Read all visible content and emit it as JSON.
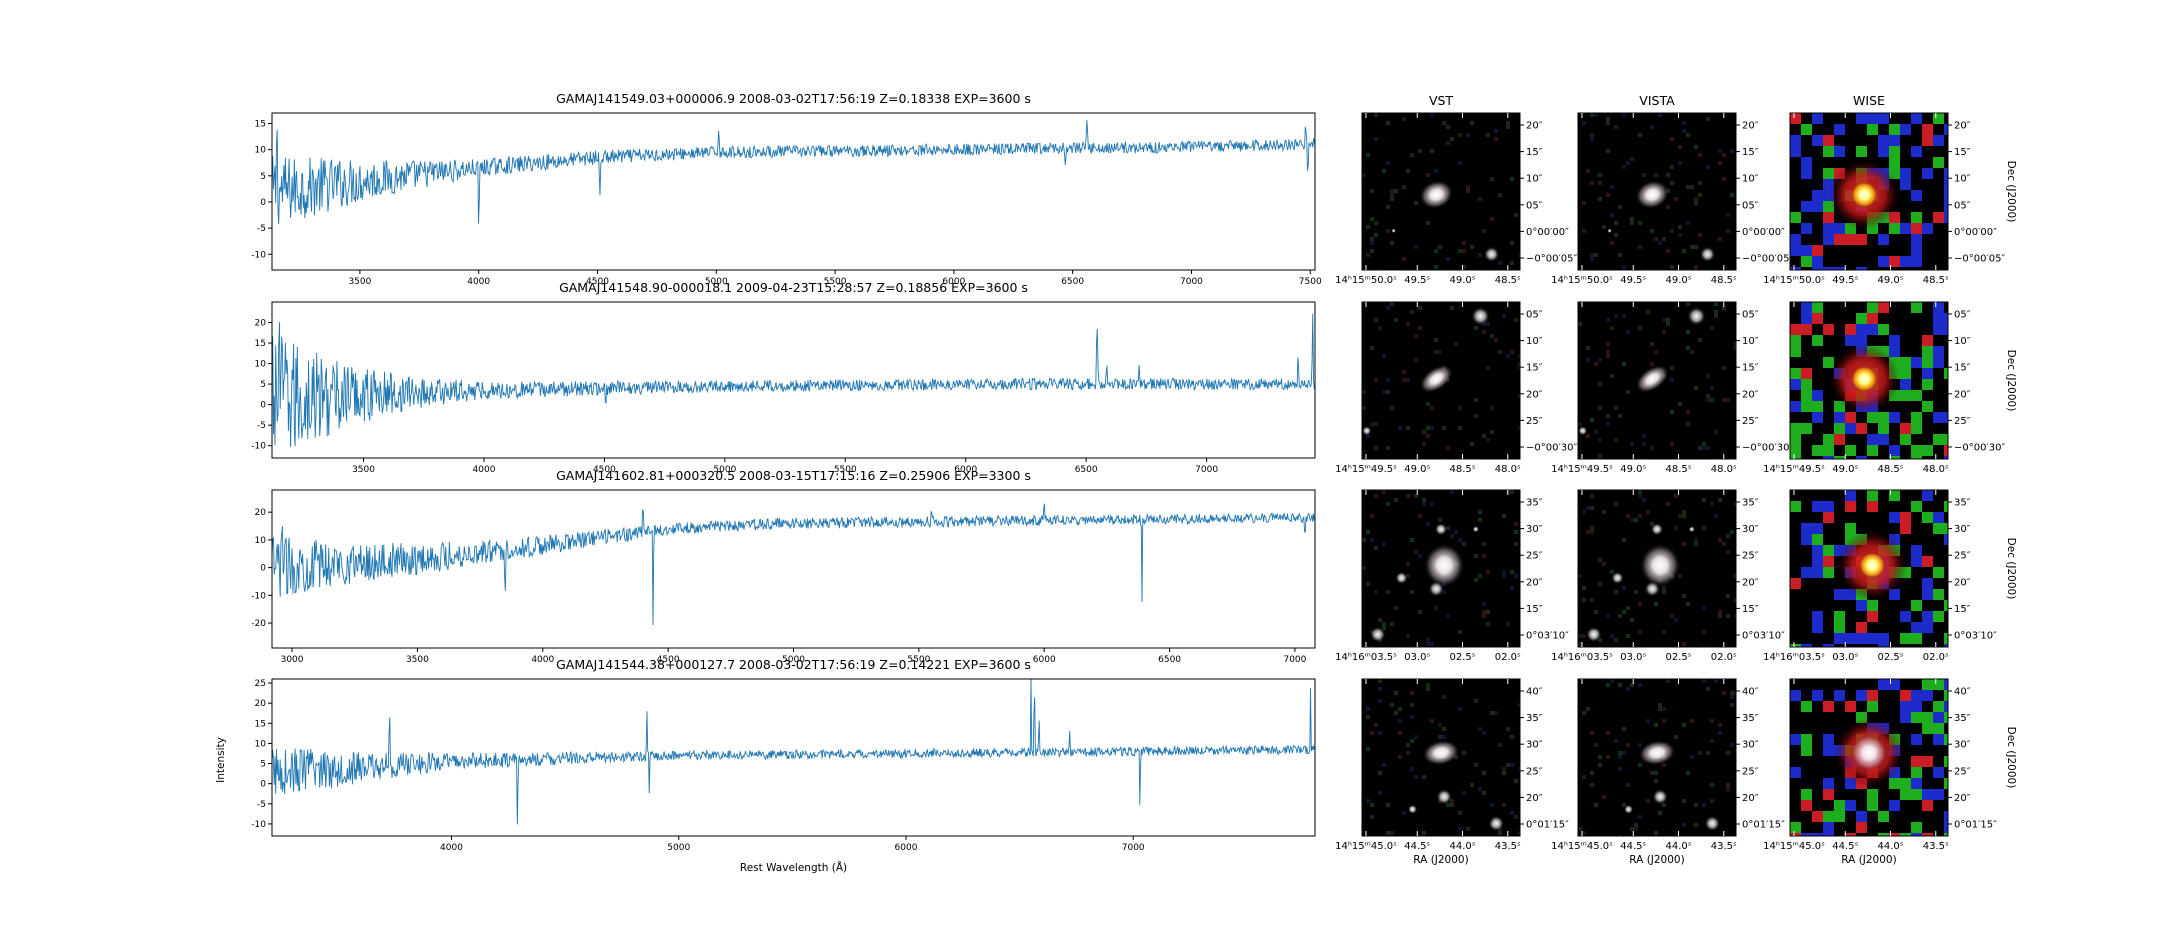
{
  "figure": {
    "ylabel": "Intensity",
    "xlabel": "Rest Wavelength (Å)",
    "image_column_titles": [
      "VST",
      "VISTA",
      "WISE"
    ],
    "image_xlabel": "RA (J2000)",
    "image_ylabel": "Dec (J2000)"
  },
  "chart_data": [
    {
      "type": "line",
      "title": "GAMAJ141549.03+000006.9 2008-03-02T17:56:19 Z=0.18338 EXP=3600 s",
      "xlim": [
        3130,
        7520
      ],
      "ylim": [
        -13,
        17
      ],
      "xticks": [
        3500,
        4000,
        4500,
        5000,
        5500,
        6000,
        6500,
        7000,
        7500
      ],
      "yticks": [
        -10,
        -5,
        0,
        5,
        10,
        15
      ],
      "continuum": [
        [
          3130,
          2
        ],
        [
          3500,
          4
        ],
        [
          4000,
          6.5
        ],
        [
          4500,
          8.5
        ],
        [
          5000,
          9.5
        ],
        [
          6000,
          10
        ],
        [
          7000,
          10.5
        ],
        [
          7500,
          11
        ]
      ],
      "noise": [
        [
          3130,
          5
        ],
        [
          3600,
          2.5
        ],
        [
          4000,
          1.2
        ],
        [
          5000,
          0.8
        ],
        [
          7500,
          0.8
        ]
      ],
      "features": [
        [
          3150,
          15,
          4
        ],
        [
          4000,
          -14,
          4
        ],
        [
          4510,
          -10,
          4
        ],
        [
          5010,
          5,
          5
        ],
        [
          6470,
          -3,
          4
        ],
        [
          6560,
          5,
          6
        ],
        [
          7480,
          6,
          3
        ],
        [
          7490,
          -10,
          3
        ]
      ],
      "series": [
        {
          "values": []
        }
      ]
    },
    {
      "type": "line",
      "title": "GAMAJ141548.90-000018.1 2009-04-23T15:28:57 Z=0.18856 EXP=3600 s",
      "xlim": [
        3120,
        7450
      ],
      "ylim": [
        -13,
        25
      ],
      "xticks": [
        3500,
        4000,
        4500,
        5000,
        5500,
        6000,
        6500,
        7000
      ],
      "yticks": [
        -10,
        -5,
        0,
        5,
        10,
        15,
        20
      ],
      "continuum": [
        [
          3120,
          1
        ],
        [
          3500,
          2.5
        ],
        [
          4000,
          3.5
        ],
        [
          5000,
          4.5
        ],
        [
          6000,
          5
        ],
        [
          7000,
          5
        ],
        [
          7450,
          5
        ]
      ],
      "noise": [
        [
          3120,
          12
        ],
        [
          3400,
          6
        ],
        [
          3700,
          3
        ],
        [
          4000,
          1.5
        ],
        [
          5000,
          1
        ],
        [
          7450,
          1
        ]
      ],
      "features": [
        [
          3150,
          25,
          5
        ],
        [
          4505,
          -8,
          4
        ],
        [
          6545,
          18,
          5
        ],
        [
          6585,
          6,
          4
        ],
        [
          6720,
          4,
          5
        ],
        [
          7380,
          8,
          4
        ],
        [
          7440,
          22,
          3
        ]
      ],
      "series": [
        {
          "values": []
        }
      ]
    },
    {
      "type": "line",
      "title": "GAMAJ141602.81+000320.5 2008-03-15T17:15:16 Z=0.25906 EXP=3300 s",
      "xlim": [
        2920,
        7080
      ],
      "ylim": [
        -29,
        28
      ],
      "xticks": [
        3000,
        3500,
        4000,
        4500,
        5000,
        5500,
        6000,
        6500,
        7000
      ],
      "yticks": [
        -20,
        -10,
        0,
        10,
        20
      ],
      "continuum": [
        [
          2920,
          0
        ],
        [
          3500,
          3
        ],
        [
          4000,
          8
        ],
        [
          4500,
          14
        ],
        [
          5000,
          16
        ],
        [
          6000,
          17
        ],
        [
          7000,
          18
        ],
        [
          7080,
          18
        ]
      ],
      "noise": [
        [
          2920,
          8
        ],
        [
          3300,
          5
        ],
        [
          3800,
          3
        ],
        [
          4500,
          1.5
        ],
        [
          7080,
          1.2
        ]
      ],
      "features": [
        [
          2960,
          25,
          4
        ],
        [
          3850,
          -15,
          4
        ],
        [
          4400,
          10,
          5
        ],
        [
          4440,
          -40,
          3
        ],
        [
          5550,
          5,
          4
        ],
        [
          6000,
          6,
          4
        ],
        [
          6390,
          -30,
          3
        ],
        [
          7040,
          -10,
          3
        ]
      ],
      "series": [
        {
          "values": []
        }
      ]
    },
    {
      "type": "line",
      "title": "GAMAJ141544.38+000127.7 2008-03-02T17:56:19 Z=0.14221 EXP=3600 s",
      "xlim": [
        3210,
        7800
      ],
      "ylim": [
        -13,
        26
      ],
      "xticks": [
        4000,
        5000,
        6000,
        7000
      ],
      "yticks": [
        -10,
        -5,
        0,
        5,
        10,
        15,
        20,
        25
      ],
      "continuum": [
        [
          3210,
          3
        ],
        [
          3600,
          4
        ],
        [
          4000,
          5.5
        ],
        [
          5000,
          7
        ],
        [
          6000,
          7.5
        ],
        [
          7000,
          8
        ],
        [
          7800,
          8.5
        ]
      ],
      "noise": [
        [
          3210,
          4.5
        ],
        [
          3700,
          2.5
        ],
        [
          4000,
          1.5
        ],
        [
          5000,
          0.8
        ],
        [
          7800,
          0.8
        ]
      ],
      "features": [
        [
          3727,
          14,
          4
        ],
        [
          4290,
          -18,
          4
        ],
        [
          4860,
          12,
          4
        ],
        [
          4870,
          -10,
          3
        ],
        [
          6550,
          20,
          3
        ],
        [
          6565,
          20,
          4
        ],
        [
          6585,
          12,
          3
        ],
        [
          6720,
          6,
          4
        ],
        [
          7030,
          -20,
          3
        ],
        [
          7780,
          18,
          3
        ]
      ],
      "series": [
        {
          "values": []
        }
      ]
    }
  ],
  "cutouts": [
    {
      "ra_ticks": [
        "14ʰ15ᵐ50.0ˢ",
        "49.5ˢ",
        "49.0ˢ",
        "48.5ˢ"
      ],
      "dec_ticks": [
        "20″",
        "15″",
        "10″",
        "05″",
        "0°00′00″",
        "−0°00′05″"
      ],
      "dec_tick_dirs": "desc"
    },
    {
      "ra_ticks": [
        "14ʰ15ᵐ49.5ˢ",
        "49.0ˢ",
        "48.5ˢ",
        "48.0ˢ"
      ],
      "dec_ticks": [
        "05″",
        "10″",
        "15″",
        "20″",
        "25″",
        "−0°00′30″"
      ],
      "dec_tick_dirs": "desc"
    },
    {
      "ra_ticks": [
        "14ʰ16ᵐ03.5ˢ",
        "03.0ˢ",
        "02.5ˢ",
        "02.0ˢ"
      ],
      "dec_ticks": [
        "35″",
        "30″",
        "25″",
        "20″",
        "15″",
        "0°03′10″"
      ],
      "dec_tick_dirs": "desc"
    },
    {
      "ra_ticks": [
        "14ʰ15ᵐ45.0ˢ",
        "44.5ˢ",
        "44.0ˢ",
        "43.5ˢ"
      ],
      "dec_ticks": [
        "40″",
        "35″",
        "30″",
        "25″",
        "20″",
        "0°01′15″"
      ],
      "dec_tick_dirs": "desc"
    }
  ],
  "colors": {
    "line": "#1f77b4",
    "axis": "#000000",
    "image_bg": "#000000",
    "wise_red": "#e0202a",
    "wise_green": "#20c020",
    "wise_blue": "#2030e0"
  }
}
